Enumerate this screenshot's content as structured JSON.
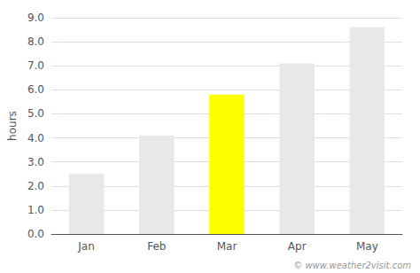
{
  "chart_data": {
    "type": "bar",
    "categories": [
      "Jan",
      "Feb",
      "Mar",
      "Apr",
      "May"
    ],
    "values": [
      2.5,
      4.1,
      5.8,
      7.1,
      8.6
    ],
    "colors": [
      "#e8e8e8",
      "#e8e8e8",
      "#ffff00",
      "#e8e8e8",
      "#e8e8e8"
    ],
    "ylabel": "hours",
    "ylim": [
      0,
      9.0
    ],
    "yticks": [
      {
        "value": 0,
        "label": "0.0"
      },
      {
        "value": 1,
        "label": "1.0"
      },
      {
        "value": 2,
        "label": "2.0"
      },
      {
        "value": 3,
        "label": "3.0"
      },
      {
        "value": 4,
        "label": "4.0"
      },
      {
        "value": 5,
        "label": "5.0"
      },
      {
        "value": 6,
        "label": "6.0"
      },
      {
        "value": 7,
        "label": "7.0"
      },
      {
        "value": 8,
        "label": "8.0"
      },
      {
        "value": 9,
        "label": "9.0"
      }
    ],
    "grid": true,
    "annotations": [
      "© www.weather2visit.com"
    ]
  }
}
